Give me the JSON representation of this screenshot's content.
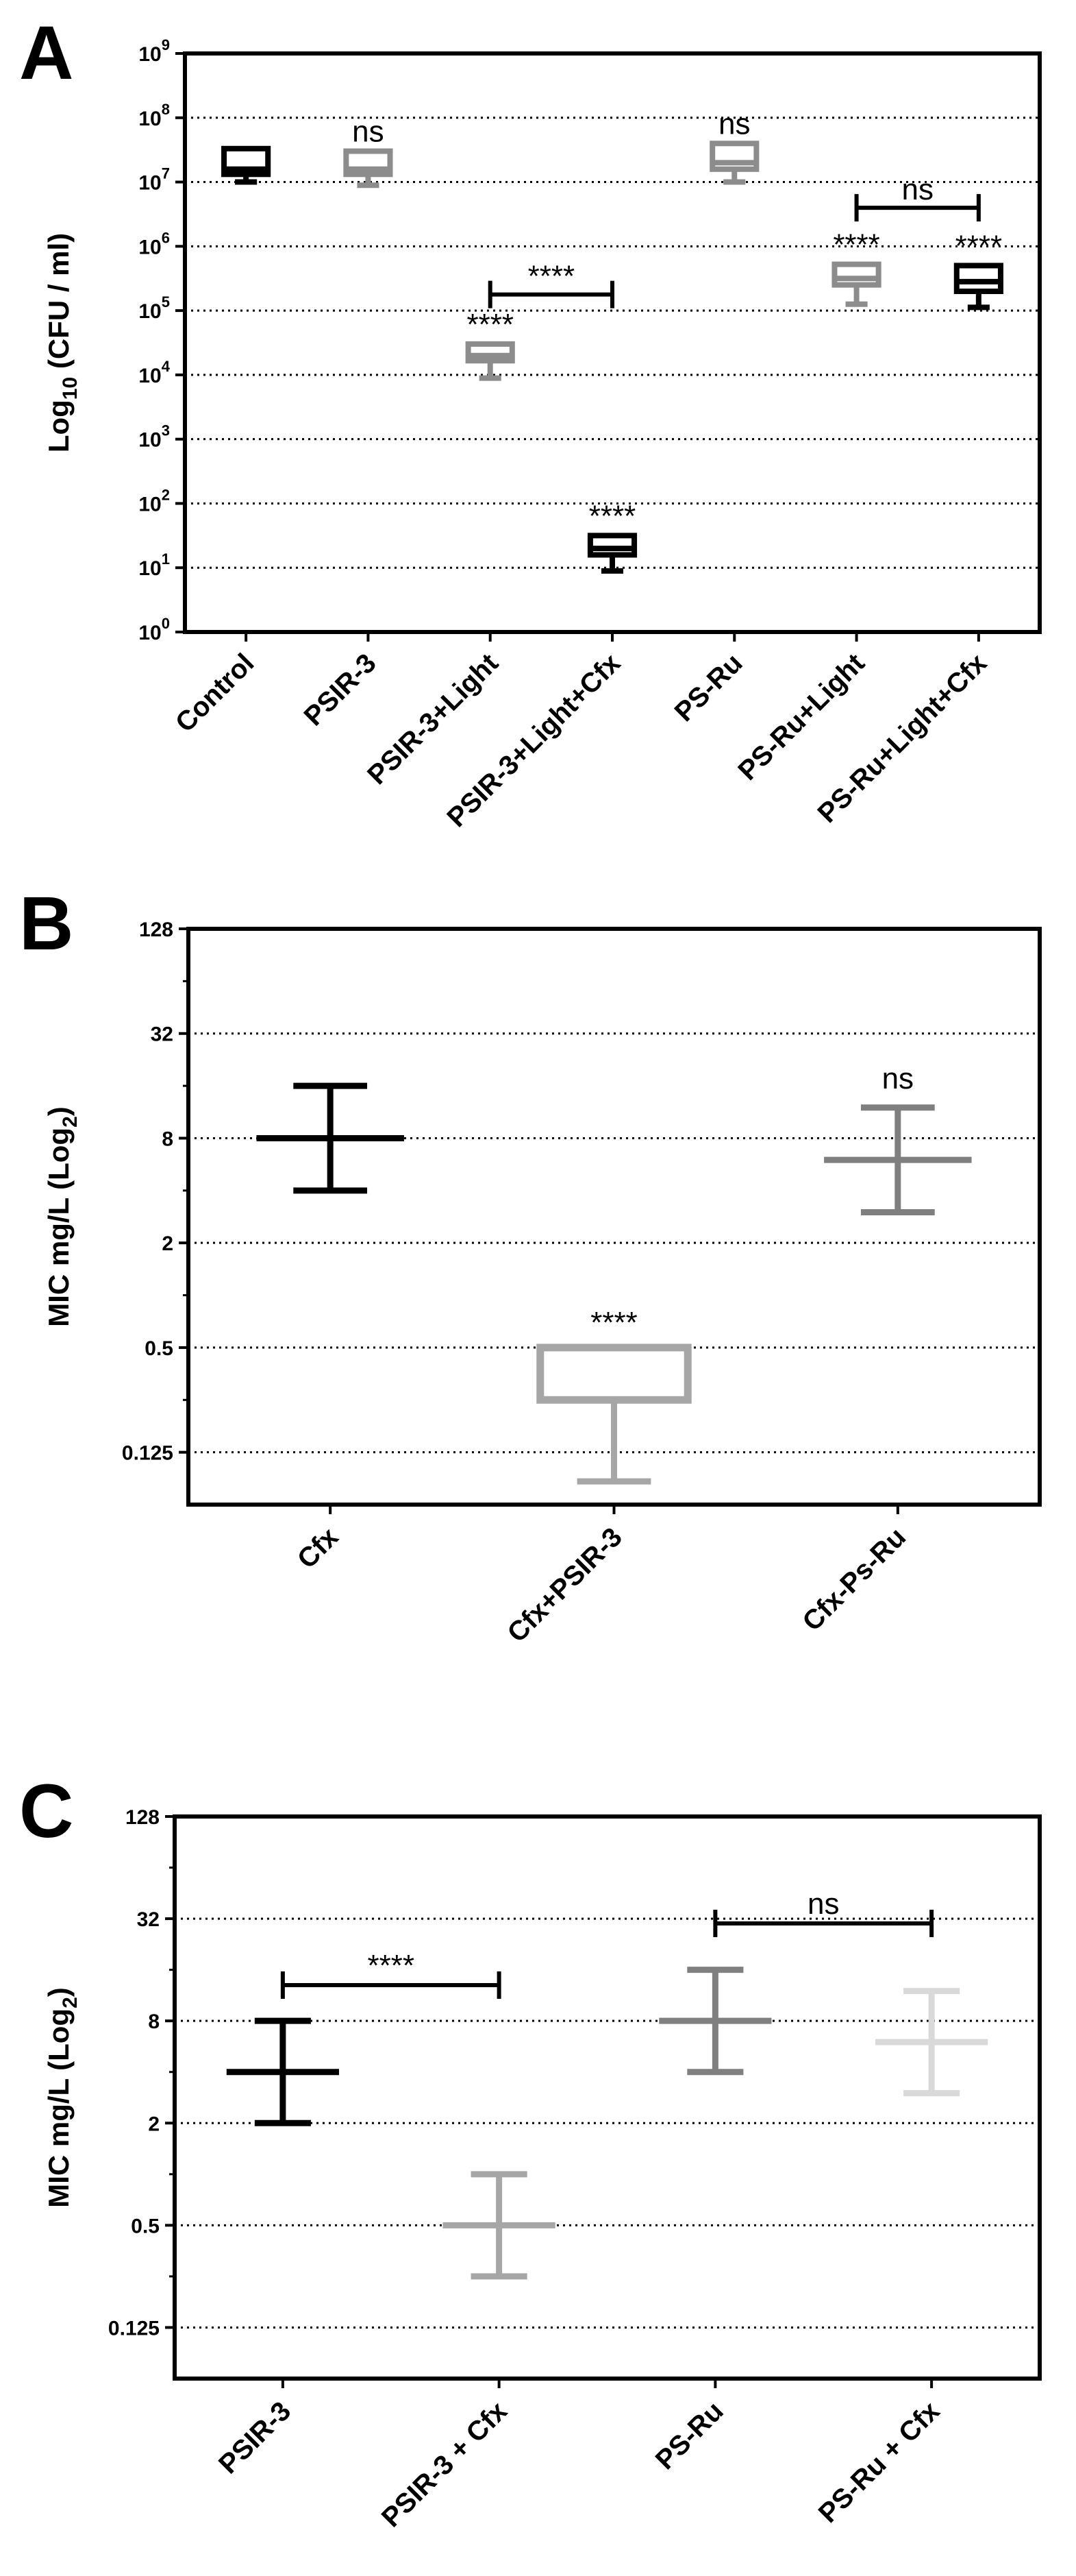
{
  "chart_data": [
    {
      "panel": "A",
      "type": "box",
      "title": "",
      "ylabel_pre": "Log",
      "ylabel_sub": "10",
      "ylabel_post": " (CFU / ml)",
      "scale": "log10",
      "ylim_exp": [
        0,
        9
      ],
      "yticks": [
        {
          "exp": 0,
          "base": "10",
          "sup": "0"
        },
        {
          "exp": 1,
          "base": "10",
          "sup": "1"
        },
        {
          "exp": 2,
          "base": "10",
          "sup": "2"
        },
        {
          "exp": 3,
          "base": "10",
          "sup": "3"
        },
        {
          "exp": 4,
          "base": "10",
          "sup": "4"
        },
        {
          "exp": 5,
          "base": "10",
          "sup": "5"
        },
        {
          "exp": 6,
          "base": "10",
          "sup": "6"
        },
        {
          "exp": 7,
          "base": "10",
          "sup": "7"
        },
        {
          "exp": 8,
          "base": "10",
          "sup": "8"
        },
        {
          "exp": 9,
          "base": "10",
          "sup": "9"
        }
      ],
      "gridlines_exp": [
        1,
        2,
        3,
        4,
        5,
        6,
        7,
        8
      ],
      "categories": [
        "Control",
        "PSIR-3",
        "PSIR-3+Light",
        "PSIR-3+Light+Cfx",
        "PS-Ru",
        "PS-Ru+Light",
        "PS-Ru+Light+Cfx"
      ],
      "boxes": [
        {
          "category": "Control",
          "color": "#000000",
          "min": 7.0,
          "q1": 7.12,
          "median": 7.2,
          "q3": 7.52,
          "max": 7.52,
          "annotation": ""
        },
        {
          "category": "PSIR-3",
          "color": "#8c8c8c",
          "min": 6.95,
          "q1": 7.12,
          "median": 7.2,
          "q3": 7.48,
          "max": 7.48,
          "annotation": "ns"
        },
        {
          "category": "PSIR-3+Light",
          "color": "#8c8c8c",
          "min": 3.95,
          "q1": 4.22,
          "median": 4.3,
          "q3": 4.48,
          "max": 4.48,
          "annotation": "****"
        },
        {
          "category": "PSIR-3+Light+Cfx",
          "color": "#000000",
          "min": 0.95,
          "q1": 1.2,
          "median": 1.3,
          "q3": 1.5,
          "max": 1.5,
          "annotation": "****"
        },
        {
          "category": "PS-Ru",
          "color": "#8c8c8c",
          "min": 7.0,
          "q1": 7.2,
          "median": 7.3,
          "q3": 7.6,
          "max": 7.6,
          "annotation": "ns"
        },
        {
          "category": "PS-Ru+Light",
          "color": "#8c8c8c",
          "min": 5.1,
          "q1": 5.4,
          "median": 5.5,
          "q3": 5.72,
          "max": 5.72,
          "annotation": "****"
        },
        {
          "category": "PS-Ru+Light+Cfx",
          "color": "#000000",
          "min": 5.05,
          "q1": 5.3,
          "median": 5.45,
          "q3": 5.7,
          "max": 5.7,
          "annotation": "****"
        }
      ],
      "brackets": [
        {
          "from": "PSIR-3+Light",
          "to": "PSIR-3+Light+Cfx",
          "y_exp": 5.25,
          "label": "****"
        },
        {
          "from": "PS-Ru+Light",
          "to": "PS-Ru+Light+Cfx",
          "y_exp": 6.6,
          "label": "ns"
        }
      ]
    },
    {
      "panel": "B",
      "type": "errorbar",
      "title": "",
      "ylabel_pre": "MIC mg/L (Log",
      "ylabel_sub": "2",
      "ylabel_post": ")",
      "scale": "log2",
      "ylim": [
        0.0625,
        128
      ],
      "yticks": [
        "128",
        "32",
        "8",
        "2",
        "0.5",
        "0.125"
      ],
      "gridlines": [
        0.125,
        0.5,
        2,
        8,
        32
      ],
      "categories": [
        "Cfx",
        "Cfx+PSIR-3",
        "Cfx-Ps-Ru"
      ],
      "points": [
        {
          "category": "Cfx",
          "color": "#000000",
          "center": 8,
          "low": 4,
          "high": 16,
          "annotation": ""
        },
        {
          "category": "Cfx+PSIR-3",
          "color": "#a6a6a6",
          "box_low": 0.25,
          "box_high": 0.5,
          "low": 0.085,
          "high": 0.5,
          "annotation": "****"
        },
        {
          "category": "Cfx-Ps-Ru",
          "color": "#7f7f7f",
          "center": 6,
          "low": 3,
          "high": 12,
          "annotation": "ns"
        }
      ]
    },
    {
      "panel": "C",
      "type": "errorbar",
      "title": "",
      "ylabel_pre": "MIC mg/L (Log",
      "ylabel_sub": "2",
      "ylabel_post": ")",
      "scale": "log2",
      "ylim": [
        0.0625,
        128
      ],
      "yticks": [
        "128",
        "32",
        "8",
        "2",
        "0.5",
        "0.125"
      ],
      "gridlines": [
        0.125,
        0.5,
        2,
        8,
        32
      ],
      "categories": [
        "PSIR-3",
        "PSIR-3 + Cfx",
        "PS-Ru",
        "PS-Ru + Cfx"
      ],
      "points": [
        {
          "category": "PSIR-3",
          "color": "#000000",
          "center": 4,
          "low": 2,
          "high": 8
        },
        {
          "category": "PSIR-3 + Cfx",
          "color": "#a6a6a6",
          "center": 0.5,
          "low": 0.25,
          "high": 1
        },
        {
          "category": "PS-Ru",
          "color": "#808080",
          "center": 8,
          "low": 4,
          "high": 16
        },
        {
          "category": "PS-Ru + Cfx",
          "color": "#d9d9d9",
          "center": 6,
          "low": 3,
          "high": 12
        }
      ],
      "brackets": [
        {
          "from": "PSIR-3",
          "to": "PSIR-3 + Cfx",
          "y": 13,
          "label": "****"
        },
        {
          "from": "PS-Ru",
          "to": "PS-Ru + Cfx",
          "y": 30,
          "label": "ns"
        }
      ]
    }
  ]
}
